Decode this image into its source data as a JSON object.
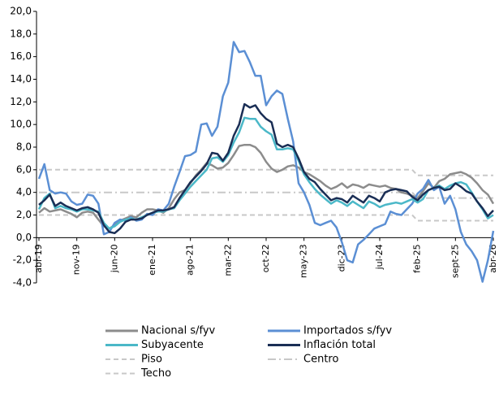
{
  "chart_data": {
    "type": "line",
    "categories": [
      "abr-19",
      null,
      null,
      null,
      null,
      null,
      null,
      "nov-19",
      null,
      null,
      null,
      null,
      null,
      null,
      "jun-20",
      null,
      null,
      null,
      null,
      null,
      null,
      "ene-21",
      null,
      null,
      null,
      null,
      null,
      null,
      "ago-21",
      null,
      null,
      null,
      null,
      null,
      null,
      "mar-22",
      null,
      null,
      null,
      null,
      null,
      null,
      "oct-22",
      null,
      null,
      null,
      null,
      null,
      null,
      "may-23",
      null,
      null,
      null,
      null,
      null,
      null,
      "dic-23",
      null,
      null,
      null,
      null,
      null,
      null,
      "jul-24",
      null,
      null,
      null,
      null,
      null,
      null,
      "feb-25",
      null,
      null,
      null,
      null,
      null,
      null,
      "sept-25",
      null,
      null,
      null,
      null,
      null,
      null,
      "abr-26"
    ],
    "ylim": [
      -4,
      20
    ],
    "yticks": [
      {
        "value": -4,
        "label": "-4,0"
      },
      {
        "value": -2,
        "label": "-2,0"
      },
      {
        "value": 0,
        "label": "0,0"
      },
      {
        "value": 2,
        "label": "2,0"
      },
      {
        "value": 4,
        "label": "4,0"
      },
      {
        "value": 6,
        "label": "6,0"
      },
      {
        "value": 8,
        "label": "8,0"
      },
      {
        "value": 10,
        "label": "10,0"
      },
      {
        "value": 12,
        "label": "12,0"
      },
      {
        "value": 14,
        "label": "14,0"
      },
      {
        "value": 16,
        "label": "16,0"
      },
      {
        "value": 18,
        "label": "18,0"
      },
      {
        "value": 20,
        "label": "20,0"
      }
    ],
    "grid": false,
    "series": [
      {
        "name": "Nacional s/fyv",
        "color": "#8c8c8c",
        "dash": "solid",
        "values": [
          2.2,
          2.6,
          2.3,
          2.4,
          2.5,
          2.3,
          2.1,
          1.8,
          2.2,
          2.3,
          2.2,
          1.6,
          1.0,
          0.8,
          1.1,
          1.5,
          1.7,
          1.9,
          1.8,
          2.2,
          2.5,
          2.5,
          2.4,
          2.2,
          2.6,
          3.4,
          4.0,
          4.2,
          4.8,
          5.5,
          6.0,
          6.6,
          6.4,
          6.1,
          6.2,
          6.6,
          7.3,
          8.1,
          8.2,
          8.2,
          8.0,
          7.5,
          6.7,
          6.1,
          5.8,
          6.0,
          6.3,
          6.4,
          6.2,
          5.8,
          5.6,
          5.3,
          5.0,
          4.6,
          4.3,
          4.5,
          4.8,
          4.4,
          4.7,
          4.6,
          4.4,
          4.7,
          4.6,
          4.5,
          4.6,
          4.4,
          4.3,
          4.0,
          3.9,
          3.7,
          3.5,
          4.1,
          4.8,
          4.4,
          5.0,
          5.2,
          5.6,
          5.7,
          5.8,
          5.6,
          5.3,
          4.8,
          4.2,
          3.8,
          3.0
        ]
      },
      {
        "name": "Importados s/fyv",
        "color": "#5b8fd4",
        "dash": "solid",
        "values": [
          5.2,
          6.5,
          4.2,
          3.9,
          4.0,
          3.9,
          3.2,
          2.9,
          3.0,
          3.8,
          3.7,
          3.0,
          0.3,
          0.5,
          1.3,
          1.6,
          1.5,
          1.8,
          1.5,
          1.6,
          2.1,
          2.0,
          2.5,
          2.4,
          3.0,
          4.5,
          5.8,
          7.2,
          7.3,
          7.6,
          10.0,
          10.1,
          9.0,
          9.8,
          12.5,
          13.7,
          17.3,
          16.4,
          16.5,
          15.5,
          14.3,
          14.3,
          11.7,
          12.5,
          13.0,
          12.7,
          10.5,
          8.5,
          4.8,
          4.0,
          2.9,
          1.3,
          1.1,
          1.3,
          1.5,
          0.9,
          -0.4,
          -2.0,
          -2.2,
          -0.6,
          -0.2,
          0.3,
          0.8,
          1.0,
          1.2,
          2.3,
          2.1,
          2.0,
          2.5,
          3.0,
          3.9,
          4.3,
          5.1,
          4.2,
          4.5,
          3.0,
          3.7,
          2.5,
          0.5,
          -0.6,
          -1.2,
          -2.0,
          -3.9,
          -2.0,
          0.6
        ]
      },
      {
        "name": "Subyacente",
        "color": "#4bb8c8",
        "dash": "solid",
        "values": [
          2.5,
          3.5,
          3.9,
          2.6,
          2.8,
          2.6,
          2.5,
          2.3,
          2.5,
          2.5,
          2.4,
          2.3,
          1.3,
          0.8,
          1.0,
          1.4,
          1.6,
          1.7,
          1.6,
          1.8,
          2.0,
          2.2,
          2.3,
          2.3,
          2.5,
          2.6,
          3.3,
          3.9,
          4.5,
          5.0,
          5.5,
          6.0,
          7.0,
          7.1,
          6.7,
          7.3,
          8.4,
          9.3,
          10.6,
          10.5,
          10.5,
          9.8,
          9.4,
          9.1,
          7.8,
          7.8,
          7.9,
          7.8,
          6.8,
          5.6,
          4.9,
          4.3,
          3.8,
          3.4,
          3.0,
          3.3,
          3.1,
          2.8,
          3.2,
          2.9,
          2.6,
          3.2,
          3.0,
          2.7,
          2.9,
          3.0,
          3.1,
          3.0,
          3.2,
          3.4,
          3.1,
          3.4,
          4.2,
          4.4,
          4.6,
          4.3,
          4.6,
          4.8,
          4.9,
          4.7,
          4.0,
          3.2,
          2.5,
          1.7,
          2.0
        ]
      },
      {
        "name": "Inflación total",
        "color": "#1a2e55",
        "dash": "solid",
        "values": [
          2.9,
          3.3,
          3.8,
          2.8,
          3.1,
          2.8,
          2.6,
          2.4,
          2.6,
          2.7,
          2.5,
          2.2,
          1.1,
          0.5,
          0.4,
          0.8,
          1.4,
          1.6,
          1.6,
          1.7,
          2.0,
          2.2,
          2.4,
          2.4,
          2.5,
          2.7,
          3.5,
          4.2,
          4.9,
          5.4,
          5.9,
          6.5,
          7.5,
          7.4,
          6.8,
          7.5,
          9.0,
          10.0,
          11.8,
          11.5,
          11.7,
          11.0,
          10.5,
          10.2,
          8.3,
          8.0,
          8.2,
          8.0,
          7.0,
          5.8,
          5.2,
          4.9,
          4.3,
          3.8,
          3.3,
          3.5,
          3.4,
          3.1,
          3.7,
          3.4,
          3.1,
          3.7,
          3.5,
          3.2,
          4.0,
          4.2,
          4.3,
          4.2,
          4.1,
          3.6,
          3.3,
          3.8,
          4.2,
          4.4,
          4.5,
          4.2,
          4.3,
          4.8,
          4.5,
          4.1,
          3.9,
          3.2,
          2.6,
          1.9,
          2.4
        ]
      },
      {
        "name": "Piso",
        "color": "#c8c8c8",
        "dash": "dashed",
        "values": [
          2,
          2,
          2,
          2,
          2,
          2,
          2,
          2,
          2,
          2,
          2,
          2,
          2,
          2,
          2,
          2,
          2,
          2,
          2,
          2,
          2,
          2,
          2,
          2,
          2,
          2,
          2,
          2,
          2,
          2,
          2,
          2,
          2,
          2,
          2,
          2,
          2,
          2,
          2,
          2,
          2,
          2,
          2,
          2,
          2,
          2,
          2,
          2,
          2,
          2,
          2,
          2,
          2,
          2,
          2,
          2,
          2,
          2,
          2,
          2,
          2,
          2,
          2,
          2,
          2,
          2,
          2,
          2,
          2,
          2,
          1.5,
          1.5,
          1.5,
          1.5,
          1.5,
          1.5,
          1.5,
          1.5,
          1.5,
          1.5,
          1.5,
          1.5,
          1.5,
          1.5,
          1.5
        ]
      },
      {
        "name": "Centro",
        "color": "#c8c8c8",
        "dash": "dashdot",
        "values": [
          4,
          4,
          4,
          4,
          4,
          4,
          4,
          4,
          4,
          4,
          4,
          4,
          4,
          4,
          4,
          4,
          4,
          4,
          4,
          4,
          4,
          4,
          4,
          4,
          4,
          4,
          4,
          4,
          4,
          4,
          4,
          4,
          4,
          4,
          4,
          4,
          4,
          4,
          4,
          4,
          4,
          4,
          4,
          4,
          4,
          4,
          4,
          4,
          4,
          4,
          4,
          4,
          4,
          4,
          4,
          4,
          4,
          4,
          4,
          4,
          4,
          4,
          4,
          4,
          4,
          4,
          4,
          4,
          4,
          4,
          3.5,
          3.5,
          3.5,
          3.5,
          3.5,
          3.5,
          3.5,
          3.5,
          3.5,
          3.5,
          3.5,
          3.5,
          3.5,
          3.5,
          3.5
        ]
      },
      {
        "name": "Techo",
        "color": "#c8c8c8",
        "dash": "dashed",
        "values": [
          6,
          6,
          6,
          6,
          6,
          6,
          6,
          6,
          6,
          6,
          6,
          6,
          6,
          6,
          6,
          6,
          6,
          6,
          6,
          6,
          6,
          6,
          6,
          6,
          6,
          6,
          6,
          6,
          6,
          6,
          6,
          6,
          6,
          6,
          6,
          6,
          6,
          6,
          6,
          6,
          6,
          6,
          6,
          6,
          6,
          6,
          6,
          6,
          6,
          6,
          6,
          6,
          6,
          6,
          6,
          6,
          6,
          6,
          6,
          6,
          6,
          6,
          6,
          6,
          6,
          6,
          6,
          6,
          6,
          6,
          5.5,
          5.5,
          5.5,
          5.5,
          5.5,
          5.5,
          5.5,
          5.5,
          5.5,
          5.5,
          5.5,
          5.5,
          5.5,
          5.5,
          5.5
        ]
      }
    ]
  }
}
